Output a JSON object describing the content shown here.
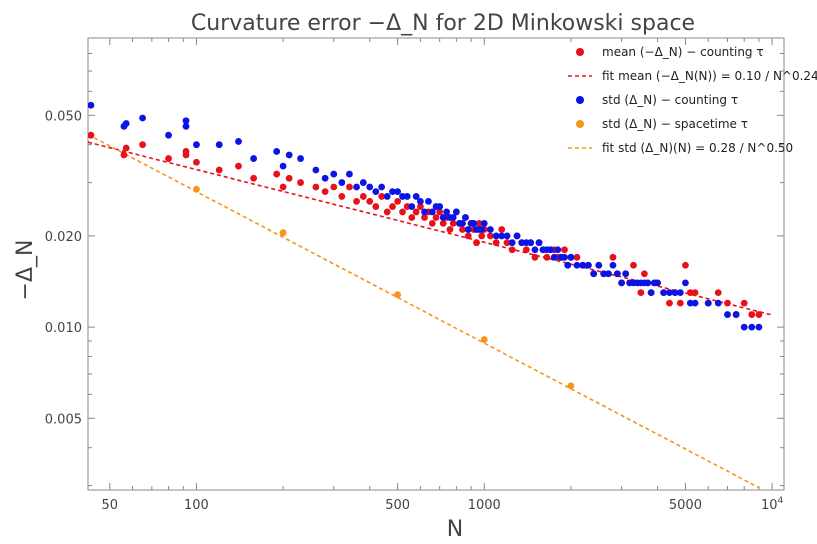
{
  "chart_data": {
    "type": "scatter",
    "title": "Curvature error −Δ_N for 2D Minkowski space",
    "xlabel": "N",
    "ylabel": "−Δ_N",
    "xscale": "log",
    "yscale": "log",
    "xlim": [
      42,
      11000
    ],
    "ylim": [
      0.0029,
      0.09
    ],
    "xticks": [
      {
        "value": 50,
        "label": "50"
      },
      {
        "value": 100,
        "label": "100"
      },
      {
        "value": 500,
        "label": "500"
      },
      {
        "value": 1000,
        "label": "1000"
      },
      {
        "value": 5000,
        "label": "5000"
      },
      {
        "value": 10000,
        "label": "10^4"
      }
    ],
    "yticks": [
      {
        "value": 0.005,
        "label": "0.005"
      },
      {
        "value": 0.01,
        "label": "0.010"
      },
      {
        "value": 0.02,
        "label": "0.020"
      },
      {
        "value": 0.05,
        "label": "0.050"
      }
    ],
    "legend_position": "top-right",
    "series": [
      {
        "name": "mean (−Δ_N) − counting τ",
        "kind": "points",
        "color": "#e8101a",
        "x": [
          43,
          56,
          57,
          65,
          80,
          92,
          92,
          100,
          120,
          140,
          158,
          190,
          200,
          210,
          230,
          260,
          280,
          300,
          320,
          340,
          360,
          380,
          400,
          420,
          440,
          460,
          480,
          500,
          520,
          540,
          560,
          580,
          600,
          620,
          640,
          660,
          680,
          700,
          720,
          740,
          760,
          780,
          800,
          820,
          840,
          860,
          880,
          900,
          920,
          940,
          960,
          980,
          1000,
          1050,
          1100,
          1150,
          1200,
          1250,
          1300,
          1350,
          1400,
          1450,
          1500,
          1550,
          1600,
          1650,
          1700,
          1750,
          1800,
          1850,
          1900,
          1950,
          2000,
          2100,
          2200,
          2300,
          2400,
          2500,
          2600,
          2700,
          2800,
          2900,
          3000,
          3100,
          3200,
          3300,
          3400,
          3500,
          3600,
          3700,
          3800,
          3900,
          4000,
          4200,
          4400,
          4600,
          4800,
          5000,
          5200,
          5400,
          6000,
          6500,
          7000,
          7500,
          8000,
          8500,
          9000
        ],
        "y": [
          0.043,
          0.037,
          0.039,
          0.04,
          0.036,
          0.038,
          0.037,
          0.035,
          0.033,
          0.034,
          0.031,
          0.032,
          0.029,
          0.031,
          0.03,
          0.029,
          0.028,
          0.029,
          0.027,
          0.029,
          0.026,
          0.027,
          0.026,
          0.025,
          0.027,
          0.024,
          0.025,
          0.026,
          0.024,
          0.025,
          0.023,
          0.024,
          0.025,
          0.023,
          0.024,
          0.022,
          0.023,
          0.024,
          0.022,
          0.023,
          0.021,
          0.022,
          0.024,
          0.022,
          0.021,
          0.023,
          0.02,
          0.022,
          0.021,
          0.019,
          0.022,
          0.02,
          0.021,
          0.02,
          0.019,
          0.021,
          0.019,
          0.018,
          0.02,
          0.019,
          0.018,
          0.019,
          0.017,
          0.019,
          0.018,
          0.017,
          0.018,
          0.018,
          0.017,
          0.017,
          0.018,
          0.016,
          0.017,
          0.017,
          0.016,
          0.016,
          0.015,
          0.016,
          0.015,
          0.015,
          0.017,
          0.015,
          0.014,
          0.015,
          0.014,
          0.016,
          0.014,
          0.013,
          0.015,
          0.014,
          0.013,
          0.014,
          0.014,
          0.013,
          0.012,
          0.013,
          0.012,
          0.016,
          0.013,
          0.013,
          0.012,
          0.013,
          0.012,
          0.011,
          0.012,
          0.011,
          0.011
        ]
      },
      {
        "name": "fit mean (−Δ_N(N)) = 0.10 / N^0.24",
        "kind": "line",
        "dash": true,
        "color": "#e8101a",
        "coefficient": 0.1,
        "exponent": 0.24,
        "x_range": [
          42,
          10000
        ]
      },
      {
        "name": "std (Δ_N) − counting τ",
        "kind": "points",
        "color": "#0a14e6",
        "x": [
          43,
          56,
          57,
          65,
          80,
          92,
          92,
          100,
          120,
          140,
          158,
          190,
          200,
          210,
          230,
          260,
          280,
          300,
          320,
          340,
          360,
          380,
          400,
          420,
          440,
          460,
          480,
          500,
          520,
          540,
          560,
          580,
          600,
          620,
          640,
          660,
          680,
          700,
          720,
          740,
          760,
          780,
          800,
          820,
          840,
          860,
          880,
          900,
          920,
          940,
          960,
          980,
          1000,
          1050,
          1100,
          1150,
          1200,
          1250,
          1300,
          1350,
          1400,
          1450,
          1500,
          1550,
          1600,
          1650,
          1700,
          1750,
          1800,
          1850,
          1900,
          1950,
          2000,
          2100,
          2200,
          2300,
          2400,
          2500,
          2600,
          2700,
          2800,
          2900,
          3000,
          3100,
          3200,
          3300,
          3400,
          3500,
          3600,
          3700,
          3800,
          3900,
          4000,
          4200,
          4400,
          4600,
          4800,
          5000,
          5200,
          5400,
          6000,
          6500,
          7000,
          7500,
          8000,
          8500,
          9000
        ],
        "y": [
          0.054,
          0.046,
          0.047,
          0.049,
          0.043,
          0.048,
          0.046,
          0.04,
          0.04,
          0.041,
          0.036,
          0.038,
          0.034,
          0.037,
          0.036,
          0.033,
          0.031,
          0.032,
          0.03,
          0.032,
          0.029,
          0.03,
          0.029,
          0.028,
          0.029,
          0.027,
          0.028,
          0.028,
          0.027,
          0.027,
          0.025,
          0.027,
          0.026,
          0.024,
          0.026,
          0.024,
          0.025,
          0.025,
          0.023,
          0.024,
          0.023,
          0.023,
          0.024,
          0.022,
          0.022,
          0.023,
          0.021,
          0.022,
          0.022,
          0.021,
          0.021,
          0.021,
          0.022,
          0.021,
          0.02,
          0.02,
          0.02,
          0.019,
          0.02,
          0.019,
          0.019,
          0.019,
          0.018,
          0.019,
          0.018,
          0.018,
          0.018,
          0.017,
          0.018,
          0.017,
          0.017,
          0.016,
          0.017,
          0.016,
          0.016,
          0.016,
          0.015,
          0.016,
          0.015,
          0.015,
          0.016,
          0.015,
          0.014,
          0.015,
          0.014,
          0.014,
          0.014,
          0.014,
          0.014,
          0.014,
          0.013,
          0.014,
          0.014,
          0.013,
          0.013,
          0.013,
          0.013,
          0.014,
          0.012,
          0.012,
          0.012,
          0.012,
          0.011,
          0.011,
          0.01,
          0.01,
          0.01
        ]
      },
      {
        "name": "std (Δ_N) − spacetime τ",
        "kind": "points",
        "color": "#f7931a",
        "x": [
          100,
          200,
          500,
          1000,
          2000
        ],
        "y": [
          0.0285,
          0.0205,
          0.0128,
          0.0091,
          0.0064
        ]
      },
      {
        "name": "fit std (Δ_N)(N) = 0.28 / N^0.50",
        "kind": "line",
        "dash": true,
        "color": "#f7931a",
        "coefficient": 0.28,
        "exponent": 0.5,
        "x_range": [
          42,
          9000
        ]
      }
    ]
  }
}
